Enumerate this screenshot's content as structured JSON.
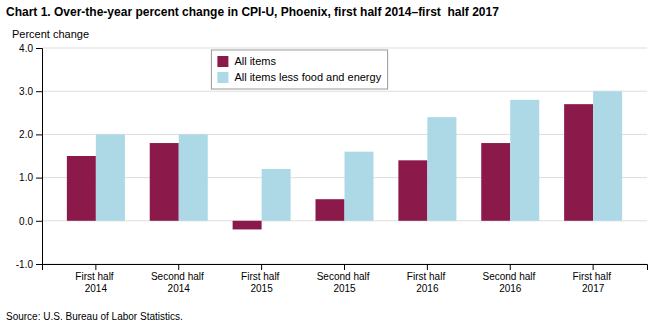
{
  "chart_data": {
    "type": "bar",
    "title": "Chart 1. Over-the-year percent change in CPI-U, Phoenix, first half 2014–first  half 2017",
    "ylabel": "Percent change",
    "annotations": [
      "Source: U.S. Bureau of Labor Statistics."
    ],
    "categories": [
      "First half 2014",
      "Second half 2014",
      "First half 2015",
      "Second half 2015",
      "First half 2016",
      "Second half 2016",
      "First half 2017"
    ],
    "series": [
      {
        "name": "All items",
        "color": "#8B1A4A",
        "values": [
          1.5,
          1.8,
          -0.2,
          0.5,
          1.4,
          1.8,
          2.7
        ]
      },
      {
        "name": "All items less food and energy",
        "color": "#ADD8E6",
        "values": [
          2.0,
          2.0,
          1.2,
          1.6,
          2.4,
          2.8,
          3.0
        ]
      }
    ],
    "ylim": [
      -1.0,
      4.0
    ],
    "yticks": [
      {
        "value": -1.0,
        "label": "-1.0"
      },
      {
        "value": 0.0,
        "label": "0.0"
      },
      {
        "value": 1.0,
        "label": "1.0"
      },
      {
        "value": 2.0,
        "label": "2.0"
      },
      {
        "value": 3.0,
        "label": "3.0"
      },
      {
        "value": 4.0,
        "label": "4.0"
      }
    ],
    "grid": true,
    "legend": "upper center"
  }
}
